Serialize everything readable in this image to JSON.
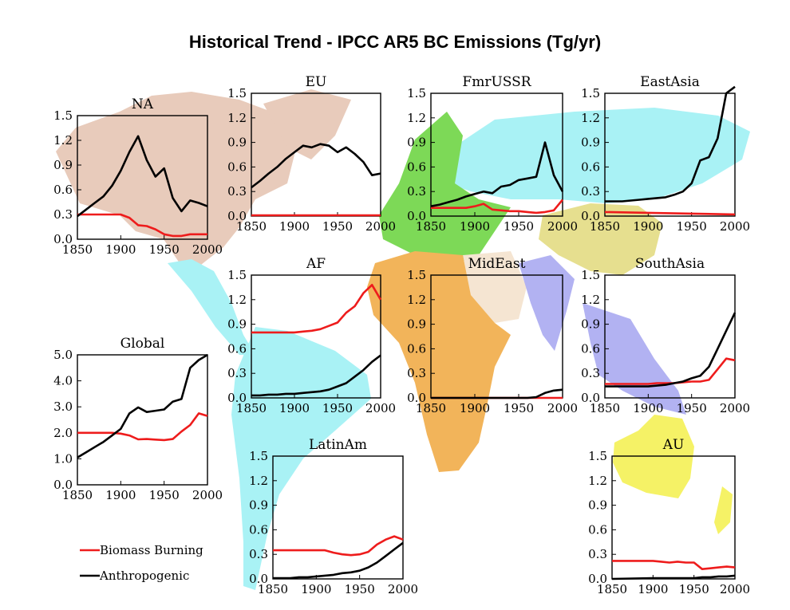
{
  "title": "Historical Trend - IPCC AR5 BC Emissions (Tg/yr)",
  "colors": {
    "biomass": "#ee1c1c",
    "anthropogenic": "#000000",
    "north_america": "#e8cbbb",
    "europe": "#7dd957",
    "russia_asia": "#a9f2f5",
    "latin_america": "#a9f2f5",
    "africa": "#f2b45a",
    "middle_east": "#f5e5d2",
    "south_asia": "#b2b2f2",
    "china_south": "#e6df8f",
    "australia": "#f5f266"
  },
  "legend": [
    {
      "name": "Biomass Burning",
      "color": "#ee1c1c"
    },
    {
      "name": "Anthropogenic",
      "color": "#000000"
    }
  ],
  "chart_data": [
    {
      "type": "line",
      "name": "NA",
      "xlim": [
        1850,
        2000
      ],
      "ylim": [
        0,
        1.5
      ],
      "xticks": [
        "1850",
        "1900",
        "1950",
        "2000"
      ],
      "yticks": [
        "0.0",
        "0.3",
        "0.6",
        "0.9",
        "1.2",
        "1.5"
      ],
      "series": [
        {
          "name": "Biomass Burning",
          "x": [
            1850,
            1860,
            1880,
            1900,
            1910,
            1920,
            1930,
            1940,
            1950,
            1960,
            1970,
            1980,
            1990,
            2000
          ],
          "y": [
            0.3,
            0.3,
            0.3,
            0.3,
            0.26,
            0.17,
            0.16,
            0.12,
            0.06,
            0.04,
            0.04,
            0.06,
            0.06,
            0.06
          ]
        },
        {
          "name": "Anthropogenic",
          "x": [
            1850,
            1860,
            1870,
            1880,
            1890,
            1900,
            1910,
            1920,
            1930,
            1940,
            1950,
            1960,
            1970,
            1980,
            1990,
            2000
          ],
          "y": [
            0.28,
            0.36,
            0.44,
            0.52,
            0.65,
            0.83,
            1.06,
            1.25,
            0.96,
            0.76,
            0.86,
            0.5,
            0.34,
            0.47,
            0.44,
            0.4
          ]
        }
      ]
    },
    {
      "type": "line",
      "name": "EU",
      "xlim": [
        1850,
        2000
      ],
      "ylim": [
        0,
        1.5
      ],
      "xticks": [
        "1850",
        "1900",
        "1950",
        "2000"
      ],
      "yticks": [
        "0.0",
        "0.3",
        "0.6",
        "0.9",
        "1.2",
        "1.5"
      ],
      "series": [
        {
          "name": "Biomass Burning",
          "x": [
            1850,
            1900,
            1950,
            2000
          ],
          "y": [
            0.01,
            0.01,
            0.01,
            0.01
          ]
        },
        {
          "name": "Anthropogenic",
          "x": [
            1850,
            1860,
            1870,
            1880,
            1890,
            1900,
            1910,
            1920,
            1930,
            1940,
            1950,
            1960,
            1970,
            1980,
            1990,
            2000
          ],
          "y": [
            0.35,
            0.43,
            0.52,
            0.6,
            0.7,
            0.78,
            0.86,
            0.84,
            0.88,
            0.86,
            0.78,
            0.84,
            0.76,
            0.66,
            0.5,
            0.52
          ]
        }
      ]
    },
    {
      "type": "line",
      "name": "FmrUSSR",
      "xlim": [
        1850,
        2000
      ],
      "ylim": [
        0,
        1.5
      ],
      "xticks": [
        "1850",
        "1900",
        "1950",
        "2000"
      ],
      "yticks": [
        "0.0",
        "0.3",
        "0.6",
        "0.9",
        "1.2",
        "1.5"
      ],
      "series": [
        {
          "name": "Biomass Burning",
          "x": [
            1850,
            1890,
            1900,
            1910,
            1920,
            1930,
            1940,
            1950,
            1960,
            1970,
            1980,
            1990,
            2000
          ],
          "y": [
            0.1,
            0.1,
            0.12,
            0.15,
            0.08,
            0.07,
            0.06,
            0.06,
            0.05,
            0.04,
            0.05,
            0.07,
            0.2
          ]
        },
        {
          "name": "Anthropogenic",
          "x": [
            1850,
            1860,
            1870,
            1880,
            1890,
            1900,
            1910,
            1920,
            1930,
            1940,
            1950,
            1960,
            1970,
            1980,
            1990,
            2000
          ],
          "y": [
            0.12,
            0.14,
            0.17,
            0.2,
            0.24,
            0.27,
            0.3,
            0.28,
            0.36,
            0.38,
            0.44,
            0.46,
            0.48,
            0.9,
            0.5,
            0.3
          ]
        }
      ]
    },
    {
      "type": "line",
      "name": "EastAsia",
      "xlim": [
        1850,
        2000
      ],
      "ylim": [
        0,
        1.5
      ],
      "xticks": [
        "1850",
        "1900",
        "1950",
        "2000"
      ],
      "yticks": [
        "0.0",
        "0.3",
        "0.6",
        "0.9",
        "1.2",
        "1.5"
      ],
      "series": [
        {
          "name": "Biomass Burning",
          "x": [
            1850,
            1900,
            1950,
            2000
          ],
          "y": [
            0.05,
            0.04,
            0.03,
            0.02
          ]
        },
        {
          "name": "Anthropogenic",
          "x": [
            1850,
            1860,
            1870,
            1880,
            1890,
            1900,
            1910,
            1920,
            1930,
            1940,
            1950,
            1960,
            1970,
            1980,
            1990,
            2000
          ],
          "y": [
            0.18,
            0.18,
            0.18,
            0.19,
            0.2,
            0.21,
            0.22,
            0.23,
            0.26,
            0.3,
            0.4,
            0.68,
            0.72,
            0.95,
            1.5,
            1.58
          ]
        }
      ]
    },
    {
      "type": "line",
      "name": "AF",
      "xlim": [
        1850,
        2000
      ],
      "ylim": [
        0,
        1.5
      ],
      "xticks": [
        "1850",
        "1900",
        "1950",
        "2000"
      ],
      "yticks": [
        "0.0",
        "0.3",
        "0.6",
        "0.9",
        "1.2",
        "1.5"
      ],
      "series": [
        {
          "name": "Biomass Burning",
          "x": [
            1850,
            1860,
            1870,
            1880,
            1890,
            1900,
            1910,
            1920,
            1930,
            1940,
            1950,
            1960,
            1970,
            1980,
            1990,
            2000
          ],
          "y": [
            0.8,
            0.8,
            0.8,
            0.8,
            0.8,
            0.8,
            0.81,
            0.82,
            0.84,
            0.88,
            0.92,
            1.04,
            1.12,
            1.28,
            1.38,
            1.2
          ]
        },
        {
          "name": "Anthropogenic",
          "x": [
            1850,
            1860,
            1870,
            1880,
            1890,
            1900,
            1910,
            1920,
            1930,
            1940,
            1950,
            1960,
            1970,
            1980,
            1990,
            2000
          ],
          "y": [
            0.03,
            0.03,
            0.04,
            0.04,
            0.05,
            0.05,
            0.06,
            0.07,
            0.08,
            0.1,
            0.14,
            0.18,
            0.26,
            0.34,
            0.44,
            0.52
          ]
        }
      ]
    },
    {
      "type": "line",
      "name": "MidEast",
      "xlim": [
        1850,
        2000
      ],
      "ylim": [
        0,
        1.5
      ],
      "xticks": [
        "1850",
        "1900",
        "1950",
        "2000"
      ],
      "yticks": [
        "0.0",
        "0.3",
        "0.6",
        "0.9",
        "1.2",
        "1.5"
      ],
      "series": [
        {
          "name": "Biomass Burning",
          "x": [
            1850,
            1900,
            1950,
            2000
          ],
          "y": [
            0.0,
            0.0,
            0.0,
            0.0
          ]
        },
        {
          "name": "Anthropogenic",
          "x": [
            1850,
            1900,
            1950,
            1960,
            1970,
            1980,
            1990,
            2000
          ],
          "y": [
            0.0,
            0.0,
            0.0,
            0.0,
            0.01,
            0.06,
            0.09,
            0.1
          ]
        }
      ]
    },
    {
      "type": "line",
      "name": "SouthAsia",
      "xlim": [
        1850,
        2000
      ],
      "ylim": [
        0,
        1.5
      ],
      "xticks": [
        "1850",
        "1900",
        "1950",
        "2000"
      ],
      "yticks": [
        "0.0",
        "0.3",
        "0.6",
        "0.9",
        "1.2",
        "1.5"
      ],
      "series": [
        {
          "name": "Biomass Burning",
          "x": [
            1850,
            1860,
            1870,
            1880,
            1890,
            1900,
            1910,
            1920,
            1930,
            1940,
            1950,
            1960,
            1970,
            1980,
            1990,
            2000
          ],
          "y": [
            0.17,
            0.17,
            0.17,
            0.17,
            0.17,
            0.17,
            0.18,
            0.18,
            0.18,
            0.19,
            0.2,
            0.2,
            0.22,
            0.35,
            0.48,
            0.46
          ]
        },
        {
          "name": "Anthropogenic",
          "x": [
            1850,
            1860,
            1870,
            1880,
            1890,
            1900,
            1910,
            1920,
            1930,
            1940,
            1950,
            1960,
            1970,
            1980,
            1990,
            2000
          ],
          "y": [
            0.14,
            0.14,
            0.14,
            0.14,
            0.14,
            0.14,
            0.15,
            0.16,
            0.18,
            0.2,
            0.24,
            0.27,
            0.38,
            0.6,
            0.82,
            1.04
          ]
        }
      ]
    },
    {
      "type": "line",
      "name": "Global",
      "xlim": [
        1850,
        2000
      ],
      "ylim": [
        0,
        5
      ],
      "xticks": [
        "1850",
        "1900",
        "1950",
        "2000"
      ],
      "yticks": [
        "0.0",
        "1.0",
        "2.0",
        "3.0",
        "4.0",
        "5.0"
      ],
      "series": [
        {
          "name": "Biomass Burning",
          "x": [
            1850,
            1860,
            1870,
            1880,
            1890,
            1900,
            1910,
            1920,
            1930,
            1940,
            1950,
            1960,
            1970,
            1980,
            1990,
            2000
          ],
          "y": [
            2.0,
            2.0,
            2.0,
            2.0,
            2.0,
            1.97,
            1.9,
            1.75,
            1.76,
            1.74,
            1.72,
            1.76,
            2.05,
            2.3,
            2.75,
            2.65
          ]
        },
        {
          "name": "Anthropogenic",
          "x": [
            1850,
            1860,
            1870,
            1880,
            1890,
            1900,
            1910,
            1920,
            1930,
            1940,
            1950,
            1960,
            1970,
            1980,
            1990,
            2000
          ],
          "y": [
            1.05,
            1.25,
            1.45,
            1.65,
            1.9,
            2.15,
            2.75,
            2.98,
            2.8,
            2.85,
            2.9,
            3.2,
            3.3,
            4.5,
            4.8,
            5.0
          ]
        }
      ]
    },
    {
      "type": "line",
      "name": "LatinAm",
      "xlim": [
        1850,
        2000
      ],
      "ylim": [
        0,
        1.5
      ],
      "xticks": [
        "1850",
        "1900",
        "1950",
        "2000"
      ],
      "yticks": [
        "0.0",
        "0.3",
        "0.6",
        "0.9",
        "1.2",
        "1.5"
      ],
      "series": [
        {
          "name": "Biomass Burning",
          "x": [
            1850,
            1860,
            1870,
            1880,
            1890,
            1900,
            1910,
            1920,
            1930,
            1940,
            1950,
            1960,
            1970,
            1980,
            1990,
            2000
          ],
          "y": [
            0.35,
            0.35,
            0.35,
            0.35,
            0.35,
            0.35,
            0.35,
            0.32,
            0.3,
            0.29,
            0.3,
            0.33,
            0.42,
            0.48,
            0.52,
            0.48
          ]
        },
        {
          "name": "Anthropogenic",
          "x": [
            1850,
            1860,
            1870,
            1880,
            1890,
            1900,
            1910,
            1920,
            1930,
            1940,
            1950,
            1960,
            1970,
            1980,
            1990,
            2000
          ],
          "y": [
            0.01,
            0.01,
            0.01,
            0.02,
            0.02,
            0.03,
            0.04,
            0.05,
            0.07,
            0.08,
            0.1,
            0.14,
            0.2,
            0.28,
            0.36,
            0.44
          ]
        }
      ]
    },
    {
      "type": "line",
      "name": "AU",
      "xlim": [
        1850,
        2000
      ],
      "ylim": [
        0,
        1.5
      ],
      "xticks": [
        "1850",
        "1900",
        "1950",
        "2000"
      ],
      "yticks": [
        "0.0",
        "0.3",
        "0.6",
        "0.9",
        "1.2",
        "1.5"
      ],
      "series": [
        {
          "name": "Biomass Burning",
          "x": [
            1850,
            1860,
            1870,
            1880,
            1890,
            1900,
            1910,
            1920,
            1930,
            1940,
            1950,
            1960,
            1970,
            1980,
            1990,
            2000
          ],
          "y": [
            0.22,
            0.22,
            0.22,
            0.22,
            0.22,
            0.22,
            0.21,
            0.2,
            0.21,
            0.2,
            0.2,
            0.12,
            0.13,
            0.14,
            0.15,
            0.14
          ]
        },
        {
          "name": "Anthropogenic",
          "x": [
            1850,
            1900,
            1950,
            1960,
            1970,
            1980,
            1990,
            2000
          ],
          "y": [
            0.0,
            0.01,
            0.01,
            0.02,
            0.02,
            0.03,
            0.03,
            0.04
          ]
        }
      ]
    }
  ]
}
